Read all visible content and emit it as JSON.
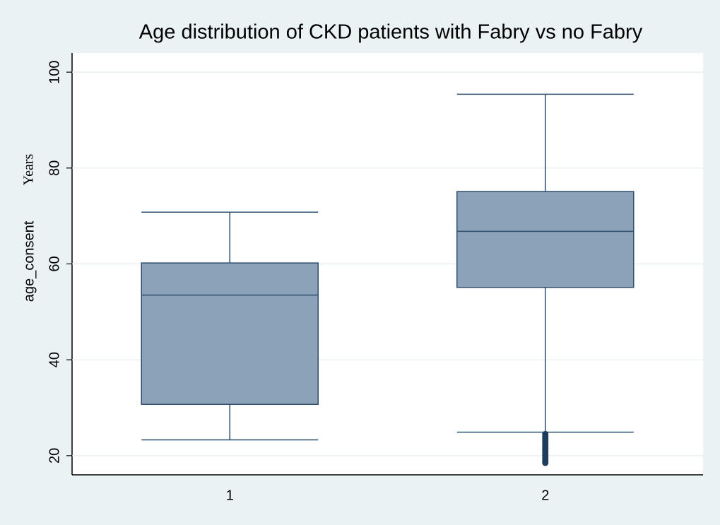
{
  "chart_data": {
    "type": "box",
    "title": "Age distribution of CKD patients with Fabry vs no Fabry",
    "ylabel": "age_consent",
    "annotation": "Years",
    "categories": [
      "1",
      "2"
    ],
    "boxes": [
      {
        "whisker_low": 23.3,
        "q1": 30.7,
        "median": 53.5,
        "q3": 60.2,
        "whisker_high": 70.8,
        "outliers": []
      },
      {
        "whisker_low": 24.9,
        "q1": 55.1,
        "median": 66.8,
        "q3": 75.1,
        "whisker_high": 95.4,
        "outliers": [
          18.5,
          19,
          19.5,
          20,
          20.5,
          21,
          21.5,
          22,
          22.5,
          23,
          23.5,
          24,
          24.5
        ]
      }
    ],
    "color": "#8ca2b8",
    "ylim": [
      16,
      104
    ],
    "yticks": [
      20,
      40,
      60,
      80,
      100
    ],
    "grid": true
  }
}
